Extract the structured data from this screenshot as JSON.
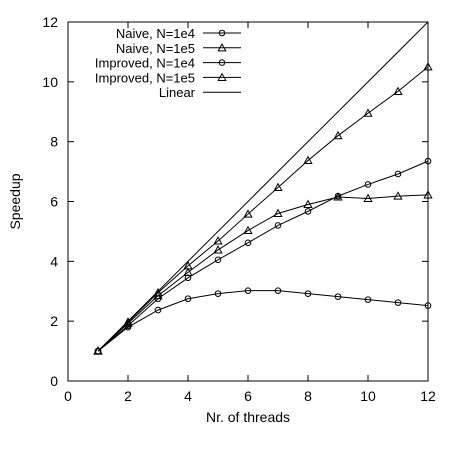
{
  "chart_data": {
    "type": "line",
    "title": "",
    "xlabel": "Nr. of threads",
    "ylabel": "Speedup",
    "xlim": [
      0,
      12
    ],
    "ylim": [
      0,
      12
    ],
    "xticks": [
      0,
      2,
      4,
      6,
      8,
      10,
      12
    ],
    "yticks": [
      0,
      2,
      4,
      6,
      8,
      10,
      12
    ],
    "xtick_labels": [
      "0",
      "2",
      "4",
      "6",
      "8",
      "10",
      "12"
    ],
    "ytick_labels": [
      "0",
      "2",
      "4",
      "6",
      "8",
      "10",
      "12"
    ],
    "grid": false,
    "legend_position": "top-left",
    "x": [
      1,
      2,
      3,
      4,
      5,
      6,
      7,
      8,
      9,
      10,
      11,
      12
    ],
    "series": [
      {
        "name": "Naive, N=1e4",
        "marker": "circle",
        "values": [
          1.0,
          1.8,
          2.37,
          2.75,
          2.92,
          3.02,
          3.02,
          2.92,
          2.82,
          2.72,
          2.62,
          2.52
        ]
      },
      {
        "name": "Naive, N=1e5",
        "marker": "triangle",
        "values": [
          1.0,
          1.97,
          2.95,
          3.85,
          4.68,
          5.58,
          6.47,
          7.37,
          8.2,
          8.95,
          9.68,
          10.5
        ]
      },
      {
        "name": "Improved, N=1e4",
        "marker": "circle",
        "values": [
          1.0,
          1.85,
          2.75,
          3.45,
          4.05,
          4.62,
          5.2,
          5.67,
          6.18,
          6.57,
          6.92,
          7.35
        ]
      },
      {
        "name": "Improved, N=1e5",
        "marker": "triangle",
        "values": [
          1.0,
          1.93,
          2.85,
          3.63,
          4.38,
          5.03,
          5.6,
          5.9,
          6.15,
          6.1,
          6.18,
          6.22
        ]
      },
      {
        "name": "Linear",
        "marker": "none",
        "values": [
          1,
          2,
          3,
          4,
          5,
          6,
          7,
          8,
          9,
          10,
          11,
          12
        ]
      }
    ]
  }
}
